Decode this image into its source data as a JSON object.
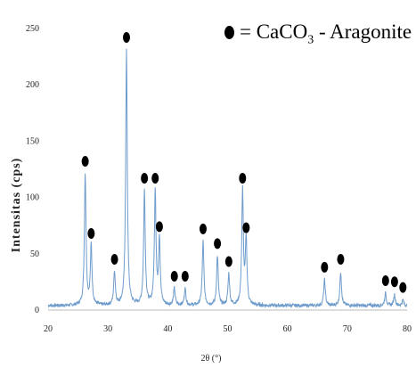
{
  "chart_data": {
    "type": "line",
    "xlabel": "2θ (°)",
    "ylabel": "Intensitas (cps)",
    "xlim": [
      20,
      80
    ],
    "ylim": [
      0,
      250
    ],
    "xticks": [
      20,
      30,
      40,
      50,
      60,
      70,
      80
    ],
    "yticks": [
      0,
      50,
      100,
      150,
      200,
      250
    ],
    "grid": false,
    "legend_position": "top-right",
    "legend": {
      "symbol": "●",
      "text_prefix": "= CaCO",
      "subscript": "3",
      "text_suffix": " - Aragonite"
    },
    "series": [
      {
        "color": "#6f9ccc",
        "peaks": [
          {
            "x": 26.2,
            "y": 117
          },
          {
            "x": 27.2,
            "y": 53
          },
          {
            "x": 31.1,
            "y": 30
          },
          {
            "x": 33.1,
            "y": 227
          },
          {
            "x": 36.1,
            "y": 102
          },
          {
            "x": 37.9,
            "y": 102
          },
          {
            "x": 38.6,
            "y": 59
          },
          {
            "x": 41.1,
            "y": 15
          },
          {
            "x": 42.9,
            "y": 15
          },
          {
            "x": 45.9,
            "y": 57
          },
          {
            "x": 48.3,
            "y": 44
          },
          {
            "x": 50.2,
            "y": 28
          },
          {
            "x": 52.5,
            "y": 102
          },
          {
            "x": 53.1,
            "y": 58
          },
          {
            "x": 66.2,
            "y": 23
          },
          {
            "x": 68.9,
            "y": 30
          },
          {
            "x": 76.4,
            "y": 11
          },
          {
            "x": 77.9,
            "y": 10
          },
          {
            "x": 79.3,
            "y": 5
          }
        ],
        "background_level": 4
      }
    ],
    "markers": {
      "symbol": "●",
      "at_peaks": [
        26.2,
        27.2,
        31.1,
        33.1,
        36.1,
        37.9,
        38.6,
        41.1,
        42.9,
        45.9,
        48.3,
        50.2,
        52.5,
        53.1,
        66.2,
        68.9,
        76.4,
        77.9,
        79.3
      ]
    }
  }
}
